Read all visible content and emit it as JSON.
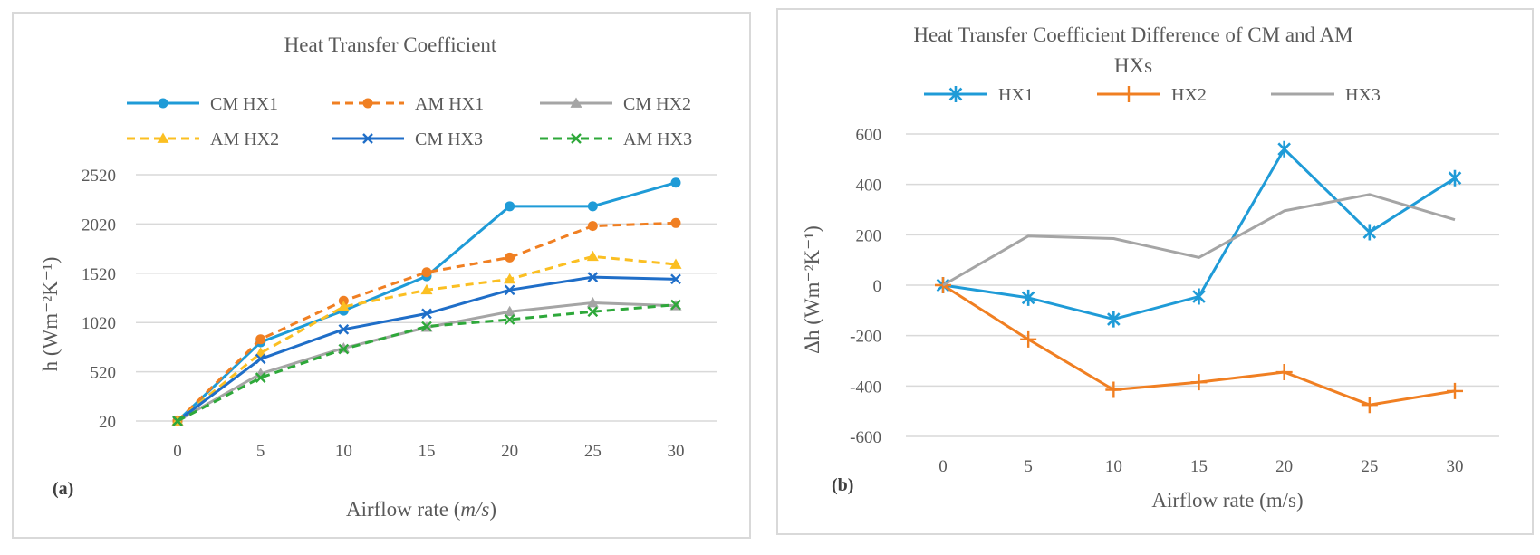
{
  "chart_data": [
    {
      "type": "line",
      "panel_label": "(a)",
      "title": "Heat Transfer Coefficient",
      "xlabel_prefix": "Airflow rate (",
      "xlabel_unit": "m/s",
      "xlabel_suffix": ")",
      "ylabel": "h (Wm⁻²K⁻¹)",
      "x": [
        0,
        5,
        10,
        15,
        20,
        25,
        30
      ],
      "x_ticks": [
        "0",
        "5",
        "10",
        "15",
        "20",
        "25",
        "30"
      ],
      "y_ticks": [
        20,
        520,
        1020,
        1520,
        2020,
        2520
      ],
      "ylim": [
        20,
        2520
      ],
      "grid": true,
      "legend_position": "top",
      "series": [
        {
          "name": "CM HX1",
          "color": "#1f9bd7",
          "dash": "solid",
          "marker": "circle",
          "values": [
            20,
            820,
            1140,
            1490,
            2200,
            2200,
            2440
          ]
        },
        {
          "name": "AM HX1",
          "color": "#f07f22",
          "dash": "dashed",
          "marker": "circle",
          "values": [
            20,
            850,
            1240,
            1530,
            1680,
            2000,
            2030
          ]
        },
        {
          "name": "CM HX2",
          "color": "#a5a5a5",
          "dash": "solid",
          "marker": "triangle",
          "values": [
            20,
            500,
            760,
            970,
            1130,
            1220,
            1190
          ]
        },
        {
          "name": "AM HX2",
          "color": "#fbbf22",
          "dash": "dashed",
          "marker": "triangle",
          "values": [
            20,
            710,
            1180,
            1350,
            1460,
            1690,
            1610
          ]
        },
        {
          "name": "CM HX3",
          "color": "#1f6ec8",
          "dash": "solid",
          "marker": "x",
          "values": [
            20,
            650,
            950,
            1110,
            1350,
            1480,
            1460
          ]
        },
        {
          "name": "AM HX3",
          "color": "#2ea83a",
          "dash": "dashed",
          "marker": "x",
          "values": [
            20,
            460,
            750,
            980,
            1050,
            1130,
            1200
          ]
        }
      ]
    },
    {
      "type": "line",
      "panel_label": "(b)",
      "title_line1": "Heat Transfer Coefficient Difference of CM and AM",
      "title_line2": "HXs",
      "xlabel": "Airflow rate (m/s)",
      "ylabel": "Δh (Wm⁻²K⁻¹)",
      "x": [
        0,
        5,
        10,
        15,
        20,
        25,
        30
      ],
      "x_ticks": [
        "0",
        "5",
        "10",
        "15",
        "20",
        "25",
        "30"
      ],
      "y_ticks": [
        -600,
        -400,
        -200,
        0,
        200,
        400,
        600
      ],
      "ylim": [
        -600,
        600
      ],
      "grid": true,
      "legend_position": "top",
      "series": [
        {
          "name": "HX1",
          "color": "#1f9bd7",
          "dash": "solid",
          "marker": "star",
          "values": [
            0,
            -50,
            -135,
            -45,
            540,
            210,
            425
          ]
        },
        {
          "name": "HX2",
          "color": "#f07f22",
          "dash": "solid",
          "marker": "plus",
          "values": [
            0,
            -215,
            -415,
            -385,
            -345,
            -475,
            -420
          ]
        },
        {
          "name": "HX3",
          "color": "#a5a5a5",
          "dash": "solid",
          "marker": "none",
          "values": [
            0,
            195,
            185,
            110,
            295,
            360,
            260
          ]
        }
      ]
    }
  ]
}
